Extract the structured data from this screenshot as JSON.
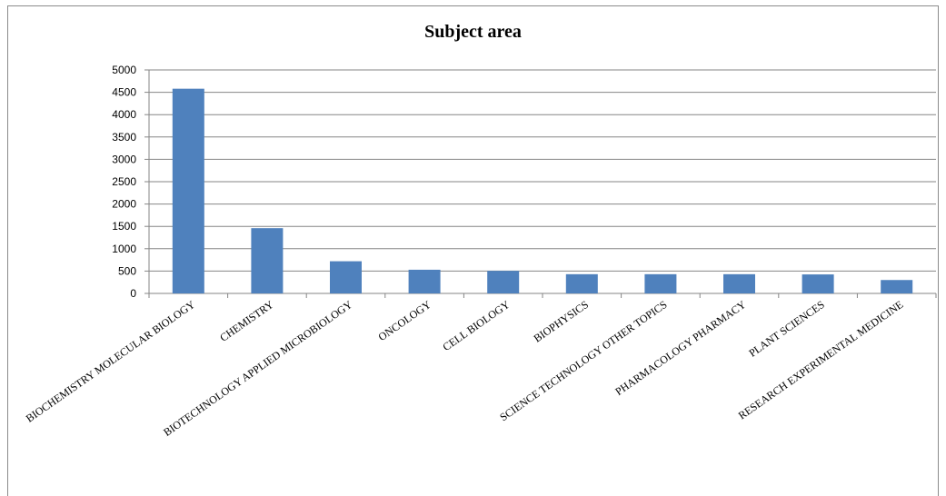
{
  "chart_data": {
    "type": "bar",
    "title": "Subject area",
    "xlabel": "",
    "ylabel": "",
    "categories": [
      "BIOCHEMISTRY MOLECULAR BIOLOGY",
      "CHEMISTRY",
      "BIOTECHNOLOGY APPLIED MICROBIOLOGY",
      "ONCOLOGY",
      "CELL BIOLOGY",
      "BIOPHYSICS",
      "SCIENCE TECHNOLOGY OTHER TOPICS",
      "PHARMACOLOGY PHARMACY",
      "PLANT SCIENCES",
      "RESEARCH EXPERIMENTAL MEDICINE"
    ],
    "values": [
      4580,
      1460,
      720,
      530,
      505,
      430,
      430,
      430,
      425,
      300
    ],
    "ylim": [
      0,
      5000
    ],
    "yticks": [
      "0",
      "500",
      "1000",
      "1500",
      "2000",
      "2500",
      "3000",
      "3500",
      "4000",
      "4500",
      "5000"
    ],
    "grid": true,
    "legend": "none",
    "bar_color": "#4f81bd",
    "grid_color": "#868686"
  }
}
